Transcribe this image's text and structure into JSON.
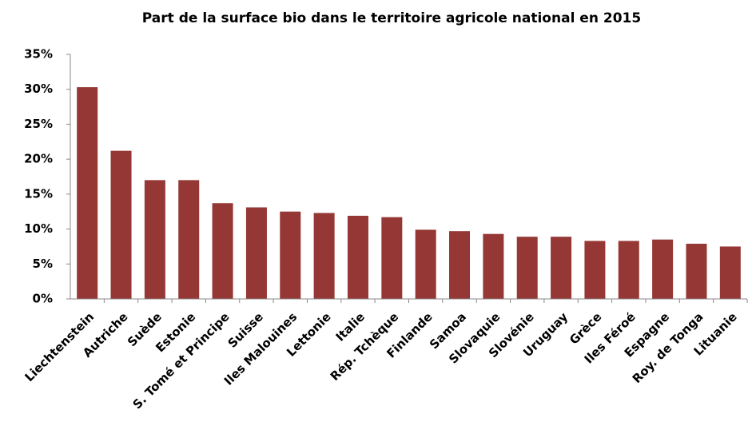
{
  "chart_data": {
    "type": "bar",
    "title": "Part de la surface bio dans le territoire agricole national en 2015",
    "categories": [
      "Liechtenstein",
      "Autriche",
      "Suède",
      "Estonie",
      "S. Tomé et Principe",
      "Suisse",
      "Iles Malouines",
      "Lettonie",
      "Italie",
      "Rép. Tchèque",
      "Finlande",
      "Samoa",
      "Slovaquie",
      "Slovénie",
      "Uruguay",
      "Grèce",
      "Iles Féroé",
      "Espagne",
      "Roy. de Tonga",
      "Lituanie"
    ],
    "values": [
      30.3,
      21.2,
      17.0,
      17.0,
      13.7,
      13.1,
      12.5,
      12.3,
      11.9,
      11.7,
      9.9,
      9.7,
      9.3,
      8.9,
      8.9,
      8.3,
      8.3,
      8.5,
      7.9,
      7.5
    ],
    "color": "#953735",
    "ylim": [
      0,
      35
    ],
    "yticks": [
      {
        "value": 0,
        "label": "0%"
      },
      {
        "value": 5,
        "label": "5%"
      },
      {
        "value": 10,
        "label": "10%"
      },
      {
        "value": 15,
        "label": "15%"
      },
      {
        "value": 20,
        "label": "20%"
      },
      {
        "value": 25,
        "label": "25%"
      },
      {
        "value": 30,
        "label": "30%"
      },
      {
        "value": 35,
        "label": "35%"
      }
    ],
    "grid": false
  }
}
